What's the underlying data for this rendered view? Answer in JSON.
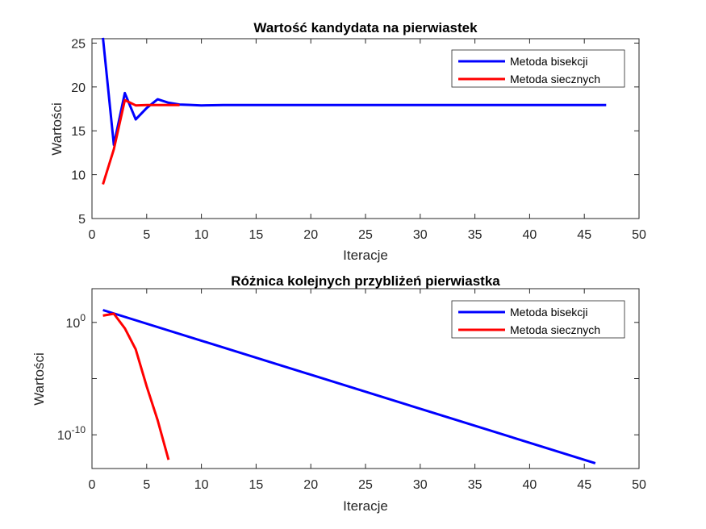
{
  "chart_data": [
    {
      "type": "line",
      "title": "Wartość kandydata na pierwiastek",
      "xlabel": "Iteracje",
      "ylabel": "Wartości",
      "xlim": [
        0,
        50
      ],
      "ylim": [
        5,
        25.5
      ],
      "yscale": "linear",
      "xticks": [
        "0",
        "5",
        "10",
        "15",
        "20",
        "25",
        "30",
        "35",
        "40",
        "45",
        "50"
      ],
      "yticks": [
        "5",
        "10",
        "15",
        "20",
        "25"
      ],
      "grid": false,
      "legend_location": "top-right",
      "series": [
        {
          "name": "Metoda bisekcji",
          "color": "#0000ff",
          "x": [
            1,
            2,
            3,
            4,
            5,
            6,
            7,
            8,
            9,
            10,
            11,
            12,
            13,
            14,
            15,
            16,
            17,
            18,
            19,
            20,
            21,
            22,
            23,
            24,
            25,
            26,
            27,
            28,
            29,
            30,
            31,
            32,
            33,
            34,
            35,
            36,
            37,
            38,
            39,
            40,
            41,
            42,
            43,
            44,
            45,
            46,
            47
          ],
          "values": [
            25.6,
            13.4,
            19.3,
            16.3,
            17.6,
            18.6,
            18.2,
            18.0,
            17.95,
            17.9,
            17.92,
            17.93,
            17.93,
            17.93,
            17.93,
            17.93,
            17.93,
            17.93,
            17.93,
            17.93,
            17.93,
            17.93,
            17.93,
            17.93,
            17.93,
            17.93,
            17.93,
            17.93,
            17.93,
            17.93,
            17.93,
            17.93,
            17.93,
            17.93,
            17.93,
            17.93,
            17.93,
            17.93,
            17.93,
            17.93,
            17.93,
            17.93,
            17.93,
            17.93,
            17.93,
            17.93,
            17.93
          ]
        },
        {
          "name": "Metoda siecznych",
          "color": "#ff0000",
          "x": [
            1,
            2,
            3,
            4,
            5,
            6,
            7,
            8
          ],
          "values": [
            8.9,
            12.9,
            18.5,
            17.9,
            17.93,
            17.93,
            17.93,
            17.93
          ]
        }
      ]
    },
    {
      "type": "line",
      "title": "Różnica kolejnych przybliżeń pierwiastka",
      "xlabel": "Iteracje",
      "ylabel": "Wartości",
      "xlim": [
        0,
        50
      ],
      "ylim": [
        1e-13,
        1000.0
      ],
      "yscale": "log",
      "xticks": [
        "0",
        "5",
        "10",
        "15",
        "20",
        "25",
        "30",
        "35",
        "40",
        "45",
        "50"
      ],
      "yticks": [
        {
          "value": 1,
          "base": "10",
          "exp": "0"
        },
        {
          "value": 1e-05,
          "base": "",
          "exp": ""
        },
        {
          "value": 1e-10,
          "base": "10",
          "exp": "-10"
        }
      ],
      "grid": false,
      "legend_location": "top-right",
      "series": [
        {
          "name": "Metoda bisekcji",
          "color": "#0000ff",
          "x": [
            1,
            46
          ],
          "values": [
            12.6,
            3e-13
          ]
        },
        {
          "name": "Metoda siecznych",
          "color": "#ff0000",
          "x": [
            1,
            2,
            3,
            4,
            5,
            6,
            7
          ],
          "values": [
            4,
            6,
            0.3,
            0.004,
            2e-06,
            2e-09,
            6e-13
          ]
        }
      ]
    }
  ]
}
